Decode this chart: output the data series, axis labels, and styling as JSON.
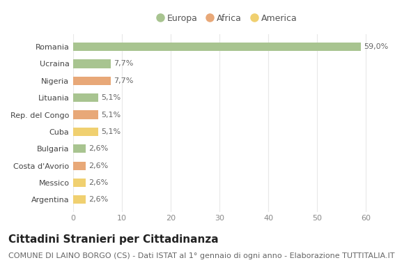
{
  "categories": [
    "Argentina",
    "Messico",
    "Costa d'Avorio",
    "Bulgaria",
    "Cuba",
    "Rep. del Congo",
    "Lituania",
    "Nigeria",
    "Ucraina",
    "Romania"
  ],
  "values": [
    2.6,
    2.6,
    2.6,
    2.6,
    5.1,
    5.1,
    5.1,
    7.7,
    7.7,
    59.0
  ],
  "colors": [
    "#f0d070",
    "#f0d070",
    "#e8a878",
    "#a8c490",
    "#f0d070",
    "#e8a878",
    "#a8c490",
    "#e8a878",
    "#a8c490",
    "#a8c490"
  ],
  "labels": [
    "2,6%",
    "2,6%",
    "2,6%",
    "2,6%",
    "5,1%",
    "5,1%",
    "5,1%",
    "7,7%",
    "7,7%",
    "59,0%"
  ],
  "legend": [
    {
      "label": "Europa",
      "color": "#a8c490"
    },
    {
      "label": "Africa",
      "color": "#e8a878"
    },
    {
      "label": "America",
      "color": "#f0d070"
    }
  ],
  "xlim": [
    0,
    63
  ],
  "xticks": [
    0,
    10,
    20,
    30,
    40,
    50,
    60
  ],
  "title": "Cittadini Stranieri per Cittadinanza",
  "subtitle": "COMUNE DI LAINO BORGO (CS) - Dati ISTAT al 1° gennaio di ogni anno - Elaborazione TUTTITALIA.IT",
  "bg_color": "#ffffff",
  "grid_color": "#e8e8e8",
  "bar_height": 0.5,
  "title_fontsize": 11,
  "subtitle_fontsize": 8,
  "label_fontsize": 8,
  "tick_fontsize": 8,
  "legend_fontsize": 9
}
